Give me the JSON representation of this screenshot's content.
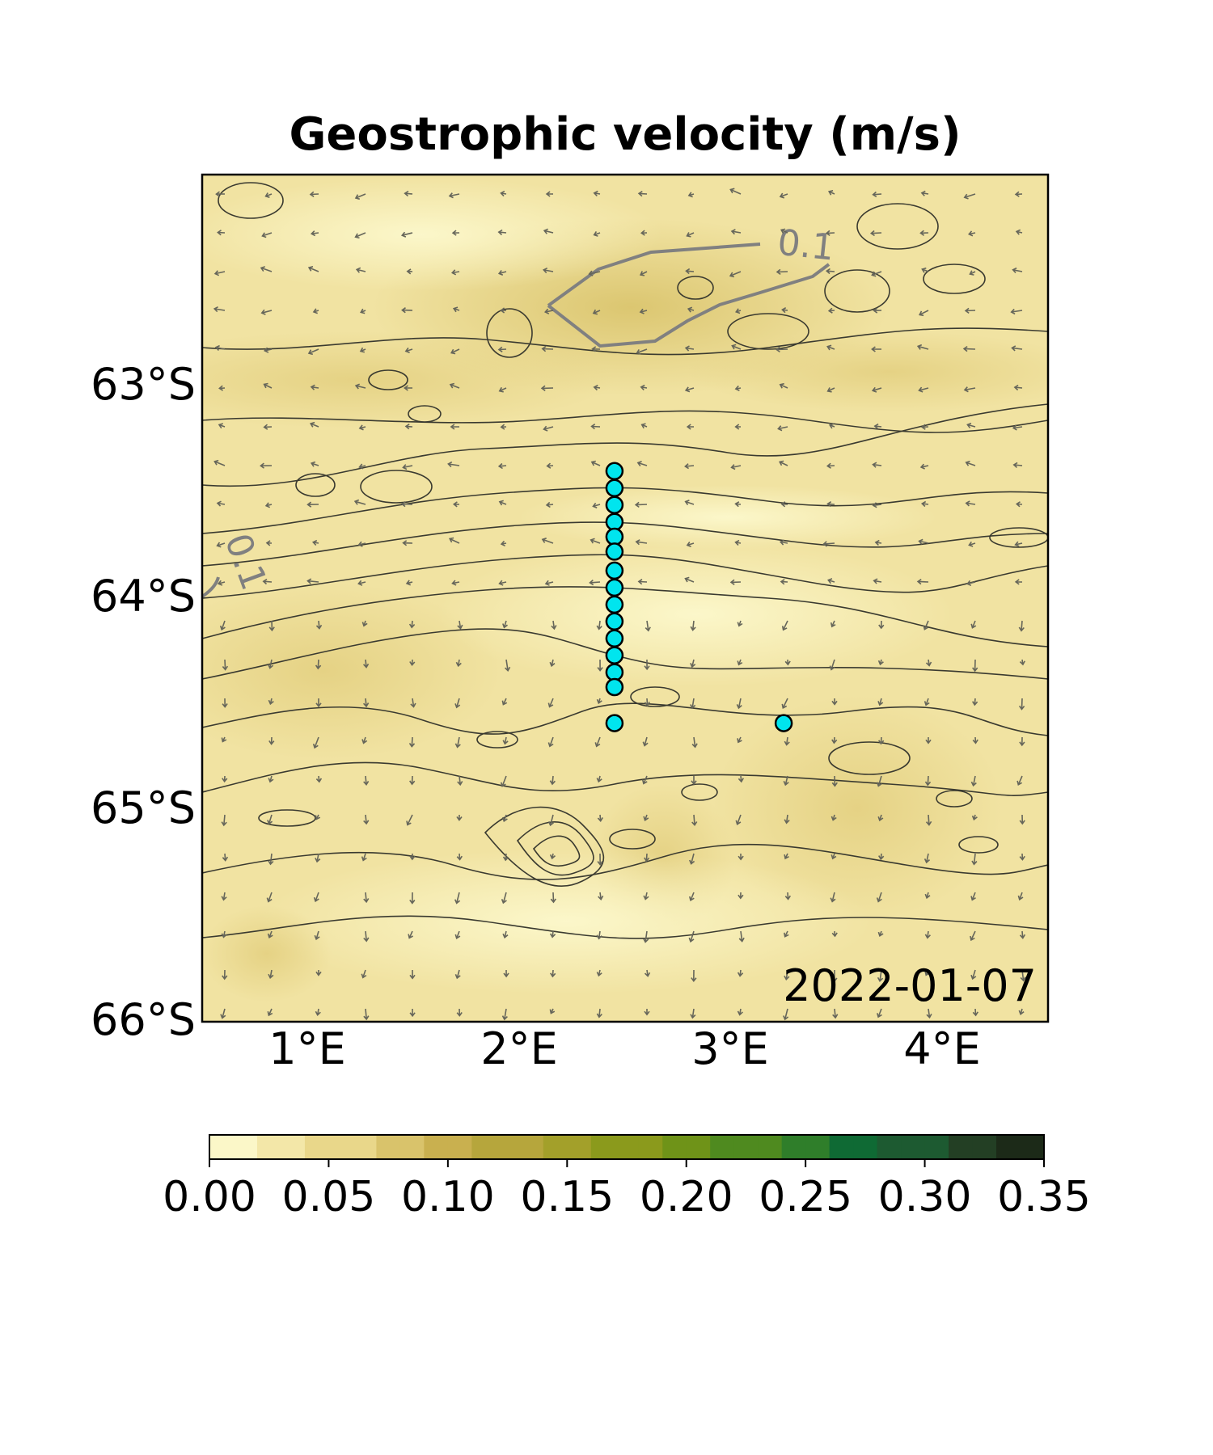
{
  "title": "Geostrophic velocity (m/s)",
  "date": "2022-01-07",
  "axes": {
    "x_ticks": [
      "1°E",
      "2°E",
      "3°E",
      "4°E"
    ],
    "y_ticks": [
      "63°S",
      "64°S",
      "65°S",
      "66°S"
    ],
    "lon_range": [
      0.5,
      4.5
    ],
    "lat_range": [
      -66.0,
      -62.0
    ]
  },
  "contour_label": "0.1",
  "colorbar": {
    "ticks": [
      "0.00",
      "0.05",
      "0.10",
      "0.15",
      "0.20",
      "0.25",
      "0.30",
      "0.35"
    ],
    "range": [
      0.0,
      0.35
    ],
    "colors": [
      "#fbf7c8",
      "#f3e7a8",
      "#e9d78a",
      "#d9c36b",
      "#c9b04f",
      "#b6a63c",
      "#a3a02a",
      "#8b9a1c",
      "#6f9318",
      "#4f8a1f",
      "#2f7e2a",
      "#0f6a34",
      "#1d5a31",
      "#233f24",
      "#1c2a18"
    ]
  },
  "stations": [
    {
      "lon": 2.45,
      "lat": -63.4
    },
    {
      "lon": 2.45,
      "lat": -63.48
    },
    {
      "lon": 2.45,
      "lat": -63.56
    },
    {
      "lon": 2.45,
      "lat": -63.64
    },
    {
      "lon": 2.45,
      "lat": -63.71
    },
    {
      "lon": 2.45,
      "lat": -63.78
    },
    {
      "lon": 2.45,
      "lat": -63.87
    },
    {
      "lon": 2.45,
      "lat": -63.95
    },
    {
      "lon": 2.45,
      "lat": -64.03
    },
    {
      "lon": 2.45,
      "lat": -64.11
    },
    {
      "lon": 2.45,
      "lat": -64.19
    },
    {
      "lon": 2.45,
      "lat": -64.27
    },
    {
      "lon": 2.45,
      "lat": -64.35
    },
    {
      "lon": 2.45,
      "lat": -64.42
    },
    {
      "lon": 2.45,
      "lat": -64.59
    },
    {
      "lon": 3.25,
      "lat": -64.59
    }
  ],
  "colors": {
    "station_fill": "#00e5ee",
    "contour": "#3a3a30",
    "highlight_contour": "#808080",
    "arrow": "#66665a"
  }
}
